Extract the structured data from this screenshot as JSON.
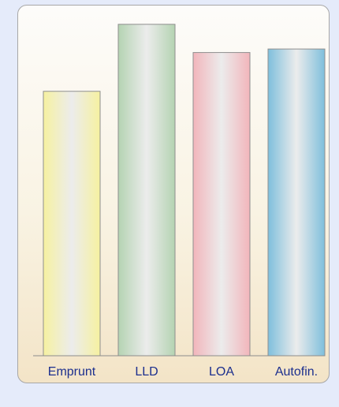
{
  "chart_data": {
    "type": "bar",
    "categories": [
      "Emprunt",
      "LLD",
      "LOA",
      "Autofin."
    ],
    "values": [
      75,
      94,
      86,
      87
    ],
    "ylim": [
      0,
      100
    ],
    "grid": false,
    "title": "",
    "xlabel": "",
    "ylabel": "",
    "colors": [
      "#f6f1a0",
      "#b4d3b2",
      "#f2b5bb",
      "#7ebfdc"
    ]
  }
}
